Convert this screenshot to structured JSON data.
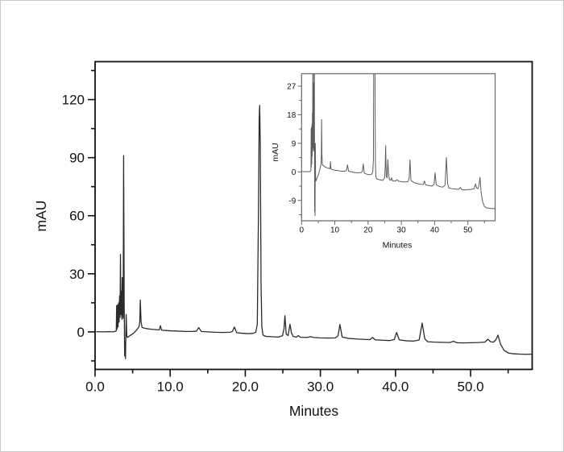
{
  "figure": {
    "background": "#ffffff",
    "border_color": "#c9c9c9"
  },
  "chart_data": {
    "type": "line",
    "title": "",
    "description": "HPLC chromatogram (absorbance trace) with inset showing the same trace on an expanded mAU scale",
    "series": [
      {
        "name": "chromatogram-trace",
        "x_unit": "Minutes",
        "y_unit": "mAU",
        "points": [
          [
            0.2,
            0.1
          ],
          [
            1.0,
            0.0
          ],
          [
            1.8,
            0.1
          ],
          [
            2.4,
            0.0
          ],
          [
            2.7,
            0.3
          ],
          [
            2.82,
            0.5
          ],
          [
            2.87,
            13.5
          ],
          [
            2.92,
            1.5
          ],
          [
            3.0,
            14.0
          ],
          [
            3.06,
            2.5
          ],
          [
            3.14,
            15.0
          ],
          [
            3.2,
            5.0
          ],
          [
            3.26,
            18.5
          ],
          [
            3.32,
            7.5
          ],
          [
            3.38,
            40.0
          ],
          [
            3.44,
            9.0
          ],
          [
            3.5,
            21.0
          ],
          [
            3.56,
            6.5
          ],
          [
            3.62,
            28.0
          ],
          [
            3.68,
            10.0
          ],
          [
            3.74,
            7.0
          ],
          [
            3.8,
            91.0
          ],
          [
            3.88,
            14.0
          ],
          [
            3.94,
            -12.5
          ],
          [
            3.99,
            -5.0
          ],
          [
            4.05,
            -13.8
          ],
          [
            4.14,
            9.0
          ],
          [
            4.22,
            -2.0
          ],
          [
            4.3,
            -2.9
          ],
          [
            4.7,
            -1.8
          ],
          [
            5.1,
            -0.8
          ],
          [
            5.5,
            0.8
          ],
          [
            5.85,
            2.6
          ],
          [
            5.95,
            5.0
          ],
          [
            6.02,
            16.5
          ],
          [
            6.12,
            5.5
          ],
          [
            6.25,
            2.3
          ],
          [
            6.6,
            1.9
          ],
          [
            7.0,
            1.6
          ],
          [
            7.6,
            1.3
          ],
          [
            8.2,
            1.1
          ],
          [
            8.55,
            1.0
          ],
          [
            8.7,
            3.2
          ],
          [
            8.85,
            0.9
          ],
          [
            9.4,
            0.7
          ],
          [
            10.2,
            0.5
          ],
          [
            11.0,
            0.4
          ],
          [
            12.0,
            0.2
          ],
          [
            13.0,
            0.2
          ],
          [
            13.5,
            0.4
          ],
          [
            13.8,
            2.2
          ],
          [
            14.15,
            0.2
          ],
          [
            15.0,
            0.0
          ],
          [
            16.0,
            -0.2
          ],
          [
            17.0,
            -0.3
          ],
          [
            18.0,
            -0.2
          ],
          [
            18.3,
            0.3
          ],
          [
            18.55,
            2.5
          ],
          [
            18.85,
            -0.4
          ],
          [
            19.5,
            -0.7
          ],
          [
            20.3,
            -0.9
          ],
          [
            21.0,
            -0.8
          ],
          [
            21.4,
            -0.2
          ],
          [
            21.6,
            4.0
          ],
          [
            21.75,
            60.0
          ],
          [
            21.85,
            110.0
          ],
          [
            21.92,
            117.0
          ],
          [
            22.0,
            95.0
          ],
          [
            22.1,
            25.0
          ],
          [
            22.2,
            3.0
          ],
          [
            22.35,
            -1.6
          ],
          [
            22.7,
            -2.3
          ],
          [
            23.5,
            -2.5
          ],
          [
            24.4,
            -2.7
          ],
          [
            24.95,
            -2.0
          ],
          [
            25.15,
            1.5
          ],
          [
            25.28,
            8.3
          ],
          [
            25.45,
            -1.2
          ],
          [
            25.7,
            -1.9
          ],
          [
            25.95,
            3.9
          ],
          [
            26.15,
            -0.6
          ],
          [
            26.4,
            -2.4
          ],
          [
            26.8,
            -2.7
          ],
          [
            27.05,
            -1.9
          ],
          [
            27.35,
            -2.8
          ],
          [
            28.2,
            -2.9
          ],
          [
            28.7,
            -2.5
          ],
          [
            29.1,
            -2.9
          ],
          [
            30.0,
            -3.1
          ],
          [
            31.0,
            -3.2
          ],
          [
            32.0,
            -3.1
          ],
          [
            32.35,
            -2.0
          ],
          [
            32.6,
            3.8
          ],
          [
            32.9,
            -2.7
          ],
          [
            33.8,
            -3.4
          ],
          [
            34.8,
            -3.7
          ],
          [
            35.8,
            -3.9
          ],
          [
            36.6,
            -4.0
          ],
          [
            36.95,
            -2.9
          ],
          [
            37.3,
            -4.1
          ],
          [
            38.2,
            -4.3
          ],
          [
            39.2,
            -4.5
          ],
          [
            39.85,
            -3.9
          ],
          [
            40.15,
            -0.3
          ],
          [
            40.5,
            -4.1
          ],
          [
            41.4,
            -4.6
          ],
          [
            42.4,
            -4.8
          ],
          [
            43.15,
            -4.2
          ],
          [
            43.55,
            4.5
          ],
          [
            43.9,
            -3.6
          ],
          [
            44.3,
            -5.1
          ],
          [
            45.2,
            -5.3
          ],
          [
            46.2,
            -5.4
          ],
          [
            47.2,
            -5.5
          ],
          [
            47.75,
            -4.9
          ],
          [
            48.2,
            -5.6
          ],
          [
            49.0,
            -5.7
          ],
          [
            50.0,
            -5.6
          ],
          [
            51.0,
            -5.5
          ],
          [
            51.9,
            -5.3
          ],
          [
            52.3,
            -3.8
          ],
          [
            52.65,
            -5.1
          ],
          [
            53.05,
            -5.3
          ],
          [
            53.35,
            -4.2
          ],
          [
            53.65,
            -1.7
          ],
          [
            54.0,
            -6.5
          ],
          [
            54.45,
            -9.5
          ],
          [
            55.0,
            -10.9
          ],
          [
            55.6,
            -11.3
          ],
          [
            56.5,
            -11.5
          ],
          [
            57.4,
            -11.6
          ],
          [
            58.2,
            -11.5
          ]
        ]
      }
    ],
    "main_view": {
      "xlabel": "Minutes",
      "ylabel": "mAU",
      "xlim": [
        0,
        58.2
      ],
      "ylim": [
        -19.4,
        139.6
      ],
      "x_major_ticks": [
        0,
        10,
        20,
        30,
        40,
        50
      ],
      "x_tick_labels": [
        "0.0",
        "10.0",
        "20.0",
        "30.0",
        "40.0",
        "50.0"
      ],
      "x_minor_ticks": [
        5,
        15,
        25,
        35,
        45,
        55
      ],
      "y_major_ticks": [
        0,
        30,
        60,
        90,
        120
      ],
      "y_tick_labels": [
        "0",
        "30",
        "60",
        "90",
        "120"
      ],
      "y_minor_ticks": [
        -15,
        15,
        45,
        75,
        105,
        135
      ],
      "grid": false,
      "legend": false
    },
    "inset_view": {
      "xlabel": "Minutes",
      "ylabel": "mAU",
      "xlim": [
        0,
        58.2
      ],
      "ylim": [
        -15.4,
        30.9
      ],
      "x_major_ticks": [
        0,
        10,
        20,
        30,
        40,
        50
      ],
      "x_tick_labels": [
        "0",
        "10",
        "20",
        "30",
        "40",
        "50"
      ],
      "x_minor_ticks": [
        5,
        15,
        25,
        35,
        45,
        55
      ],
      "y_major_ticks": [
        -9,
        0,
        9,
        18,
        27
      ],
      "y_tick_labels": [
        "-9",
        "0",
        "9",
        "18",
        "27"
      ],
      "y_minor_ticks": [
        -13.5,
        -4.5,
        4.5,
        13.5,
        22.5
      ],
      "grid": false,
      "legend": false
    },
    "colors": {
      "main_trace": "#2b2b2b",
      "inset_trace": "#5c5c5c",
      "main_axis": "#111111",
      "inset_axis": "#666666",
      "tick_text": "#111111"
    }
  }
}
